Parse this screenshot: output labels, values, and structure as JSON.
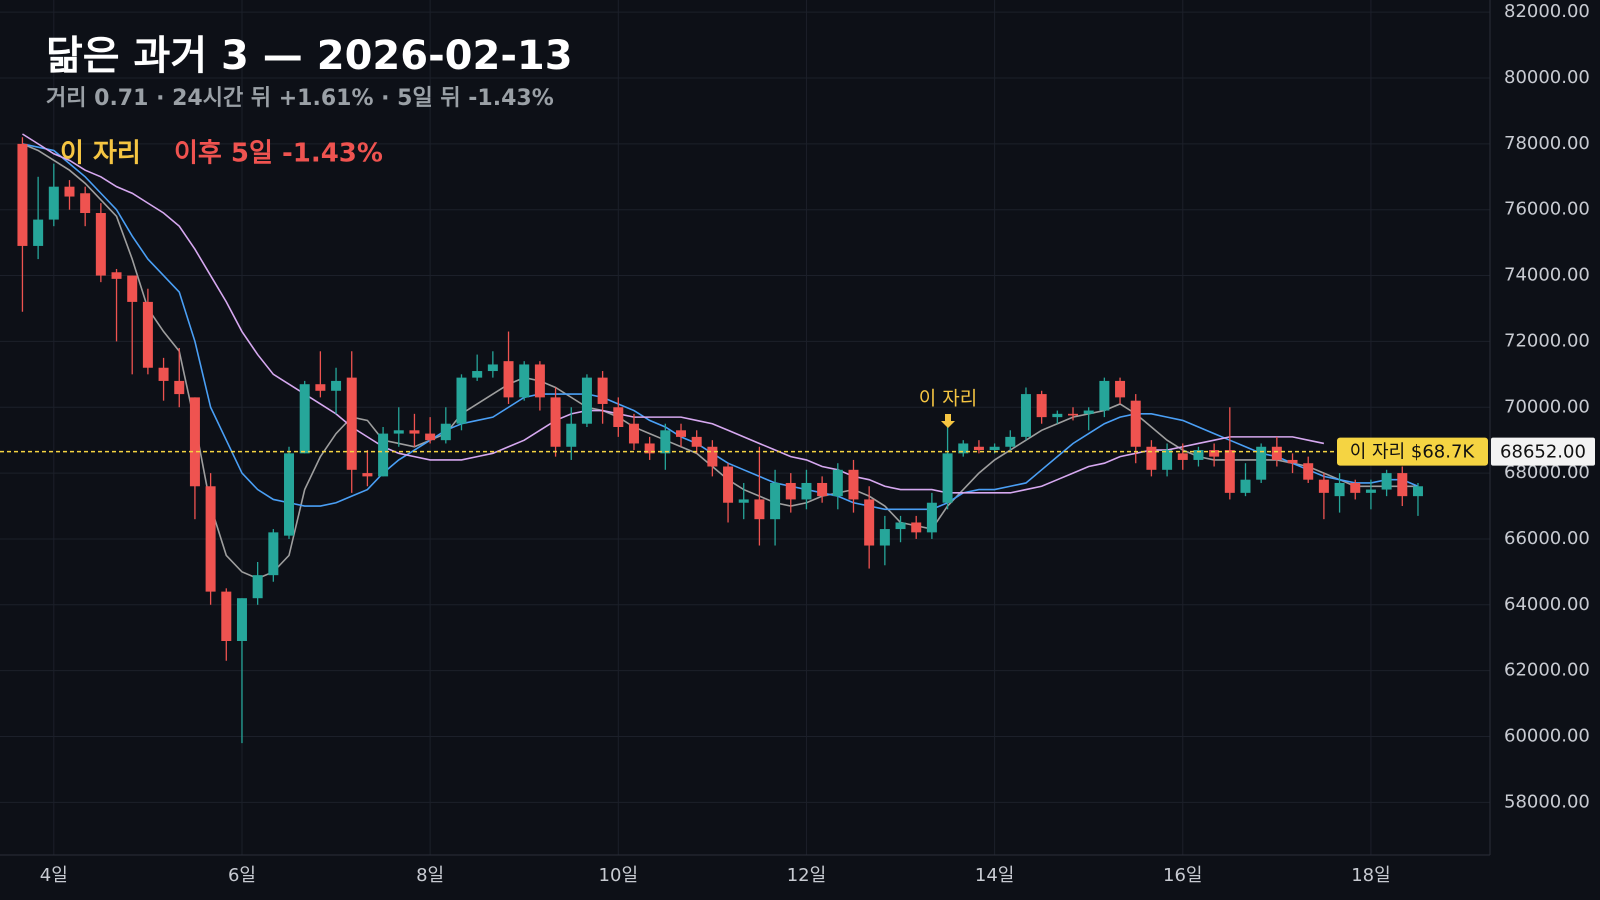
{
  "chart_data": {
    "type": "candlestick",
    "title": "닮은 과거 3 — 2026-02-13",
    "subtitle": "거리 0.71 · 24시간 뒤 +1.61% · 5일 뒤 -1.43%",
    "legend": [
      {
        "text": "이 자리",
        "color": "#f5c542"
      },
      {
        "text": "이후 5일 -1.43%",
        "color": "#ef5350"
      }
    ],
    "annotation": {
      "text": "이 자리",
      "color": "#f5c542"
    },
    "reference_line": {
      "value": 68652,
      "label": "68652.00",
      "tag": "이 자리 $68.7K",
      "color": "#f5d442"
    },
    "up_color": "#26a69a",
    "down_color": "#ef5350",
    "grid": true,
    "ylim": [
      56400,
      82370
    ],
    "yticks": [
      {
        "value": 58000,
        "label": "58000.00"
      },
      {
        "value": 60000,
        "label": "60000.00"
      },
      {
        "value": 62000,
        "label": "62000.00"
      },
      {
        "value": 64000,
        "label": "64000.00"
      },
      {
        "value": 66000,
        "label": "66000.00"
      },
      {
        "value": 68000,
        "label": "68000.00"
      },
      {
        "value": 70000,
        "label": "70000.00"
      },
      {
        "value": 72000,
        "label": "72000.00"
      },
      {
        "value": 74000,
        "label": "74000.00"
      },
      {
        "value": 76000,
        "label": "76000.00"
      },
      {
        "value": 78000,
        "label": "78000.00"
      },
      {
        "value": 80000,
        "label": "80000.00"
      },
      {
        "value": 82000,
        "label": "82000.00"
      }
    ],
    "categories": [
      null,
      null,
      "4일",
      null,
      null,
      null,
      null,
      null,
      null,
      null,
      null,
      null,
      null,
      null,
      "6일",
      null,
      null,
      null,
      null,
      null,
      null,
      null,
      null,
      null,
      null,
      null,
      "8일",
      null,
      null,
      null,
      null,
      null,
      null,
      null,
      null,
      null,
      null,
      null,
      "10일",
      null,
      null,
      null,
      null,
      null,
      null,
      null,
      null,
      null,
      null,
      null,
      "12일",
      null,
      null,
      null,
      null,
      null,
      null,
      null,
      null,
      null,
      null,
      null,
      "14일",
      null,
      null,
      null,
      null,
      null,
      null,
      null,
      null,
      null,
      null,
      null,
      "16일",
      null,
      null,
      null,
      null,
      null,
      null,
      null,
      null,
      null,
      null,
      null,
      "18일",
      null,
      null,
      null
    ],
    "open": [
      78000,
      74900,
      75700,
      76700,
      76500,
      75900,
      74100,
      74000,
      73200,
      71200,
      70800,
      70300,
      67600,
      64400,
      62900,
      64200,
      64900,
      66100,
      68600,
      70700,
      70500,
      70900,
      68000,
      67900,
      69200,
      69300,
      69200,
      69000,
      69500,
      70900,
      71100,
      71400,
      70300,
      71300,
      70300,
      68800,
      69500,
      70900,
      70000,
      69500,
      68900,
      68600,
      69300,
      69100,
      68800,
      68200,
      67100,
      67200,
      66600,
      67700,
      67200,
      67700,
      67300,
      68100,
      67200,
      65800,
      66300,
      66500,
      66200,
      67100,
      68600,
      68800,
      68700,
      68800,
      69100,
      70400,
      69700,
      69800,
      69800,
      69900,
      70800,
      70200,
      68800,
      68100,
      68600,
      68400,
      68700,
      68700,
      67400,
      67800,
      68800,
      68400,
      68300,
      67800,
      67300,
      67700,
      67400,
      67500,
      68000,
      67300
    ],
    "high": [
      78200,
      77000,
      77400,
      76900,
      76700,
      76200,
      74200,
      74000,
      73600,
      71500,
      71800,
      70300,
      68000,
      64500,
      64200,
      65300,
      66300,
      68800,
      70800,
      71700,
      71200,
      71700,
      68700,
      69400,
      70000,
      69800,
      69700,
      70000,
      71000,
      71600,
      71700,
      72300,
      71400,
      71400,
      70600,
      70000,
      71000,
      71100,
      70300,
      69800,
      69100,
      69500,
      69500,
      69300,
      69000,
      68300,
      67700,
      68800,
      68100,
      68000,
      68100,
      67900,
      68300,
      68400,
      67600,
      66700,
      66700,
      66700,
      67400,
      69400,
      69000,
      69000,
      68900,
      69300,
      70600,
      70500,
      69900,
      70000,
      70000,
      70900,
      70900,
      70400,
      69000,
      68900,
      68900,
      68800,
      68900,
      70000,
      68300,
      68900,
      69100,
      68600,
      68500,
      68000,
      68000,
      67800,
      67800,
      68100,
      68200,
      67700
    ],
    "low": [
      72900,
      74500,
      75500,
      76000,
      75500,
      73800,
      72000,
      71000,
      71000,
      70200,
      70000,
      66600,
      64000,
      62300,
      59800,
      64000,
      64700,
      66000,
      68600,
      70300,
      69800,
      67400,
      67600,
      67900,
      68800,
      68800,
      68900,
      68900,
      69300,
      70800,
      70900,
      70100,
      70200,
      69900,
      68500,
      68400,
      69400,
      69500,
      69100,
      68700,
      68400,
      68100,
      68800,
      68600,
      67900,
      66500,
      66600,
      65800,
      65800,
      66800,
      66900,
      67100,
      66900,
      66800,
      65100,
      65200,
      65900,
      66000,
      66000,
      66900,
      68500,
      68600,
      68600,
      68700,
      69000,
      69500,
      69500,
      69600,
      69300,
      69700,
      70100,
      68300,
      67900,
      67900,
      68100,
      68200,
      68200,
      67200,
      67300,
      67700,
      68200,
      68000,
      67700,
      66600,
      66800,
      67200,
      66900,
      67300,
      67000,
      66700
    ],
    "close": [
      74900,
      75700,
      76700,
      76400,
      75900,
      74000,
      73900,
      73200,
      71200,
      70800,
      70400,
      67600,
      64400,
      62900,
      64200,
      64900,
      66200,
      68600,
      70700,
      70500,
      70800,
      68100,
      67900,
      69200,
      69300,
      69200,
      69000,
      69500,
      70900,
      71100,
      71300,
      70300,
      71300,
      70300,
      68800,
      69500,
      70900,
      70100,
      69400,
      68900,
      68600,
      69300,
      69100,
      68800,
      68200,
      67100,
      67200,
      66600,
      67700,
      67200,
      67700,
      67300,
      68100,
      67200,
      65800,
      66300,
      66500,
      66200,
      67100,
      68600,
      68900,
      68700,
      68800,
      69100,
      70400,
      69700,
      69800,
      69750,
      69900,
      70800,
      70300,
      68800,
      68100,
      68700,
      68400,
      68700,
      68500,
      67400,
      67800,
      68800,
      68400,
      68300,
      67800,
      67400,
      67700,
      67400,
      67500,
      68000,
      67300,
      67600
    ],
    "lines": [
      {
        "color": "#9e9e9e",
        "values": [
          78000,
          77800,
          77500,
          77200,
          76800,
          76300,
          75800,
          74500,
          73000,
          72300,
          71700,
          69500,
          67000,
          65500,
          65000,
          64800,
          65000,
          65500,
          67500,
          68500,
          69200,
          69700,
          69600,
          69000,
          68900,
          68800,
          69000,
          69200,
          69800,
          70100,
          70400,
          70700,
          70900,
          70800,
          70600,
          70300,
          70000,
          69900,
          69700,
          69400,
          69200,
          69000,
          68800,
          68600,
          68200,
          67800,
          67500,
          67300,
          67100,
          67000,
          67100,
          67300,
          67400,
          67500,
          67300,
          67000,
          66500,
          66400,
          66300,
          67000,
          67500,
          68000,
          68400,
          68700,
          69000,
          69300,
          69500,
          69700,
          69800,
          69900,
          70100,
          69800,
          69400,
          69000,
          68700,
          68500,
          68400,
          68400,
          68400,
          68400,
          68400,
          68300,
          68200,
          68000,
          67800,
          67600,
          67600,
          67600,
          67600,
          67600
        ]
      },
      {
        "color": "#4a9ff5",
        "values": [
          78000,
          77900,
          77800,
          77400,
          77000,
          76500,
          76000,
          75200,
          74500,
          74000,
          73500,
          72000,
          70000,
          69000,
          68000,
          67500,
          67200,
          67100,
          67000,
          67000,
          67100,
          67300,
          67500,
          68000,
          68400,
          68700,
          69000,
          69300,
          69500,
          69600,
          69700,
          70000,
          70300,
          70400,
          70400,
          70400,
          70400,
          70300,
          70100,
          69900,
          69600,
          69400,
          69100,
          68900,
          68600,
          68300,
          68100,
          67900,
          67700,
          67600,
          67500,
          67400,
          67300,
          67100,
          67000,
          66900,
          66900,
          66900,
          66900,
          67100,
          67400,
          67500,
          67500,
          67600,
          67700,
          68100,
          68500,
          68900,
          69200,
          69500,
          69700,
          69800,
          69800,
          69700,
          69600,
          69400,
          69200,
          69000,
          68800,
          68600,
          68500,
          68300,
          68100,
          67900,
          67800,
          67700,
          67700,
          67800,
          67800,
          67600
        ]
      },
      {
        "color": "#d6a8f0",
        "values": [
          78300,
          78000,
          77700,
          77500,
          77200,
          77000,
          76700,
          76500,
          76200,
          75900,
          75500,
          74800,
          74000,
          73200,
          72300,
          71600,
          71000,
          70700,
          70400,
          70100,
          69800,
          69400,
          69100,
          68800,
          68600,
          68500,
          68400,
          68400,
          68400,
          68500,
          68600,
          68800,
          69000,
          69300,
          69600,
          69800,
          69900,
          69900,
          69800,
          69700,
          69700,
          69700,
          69700,
          69600,
          69500,
          69300,
          69100,
          68900,
          68700,
          68500,
          68400,
          68200,
          68100,
          67900,
          67800,
          67600,
          67500,
          67500,
          67500,
          67400,
          67400,
          67400,
          67400,
          67400,
          67500,
          67600,
          67800,
          68000,
          68200,
          68300,
          68500,
          68600,
          68700,
          68700,
          68800,
          68900,
          69000,
          69100,
          69100,
          69100,
          69100,
          69100,
          69000,
          68900,
          null,
          null,
          null,
          null,
          null,
          null
        ]
      }
    ]
  }
}
